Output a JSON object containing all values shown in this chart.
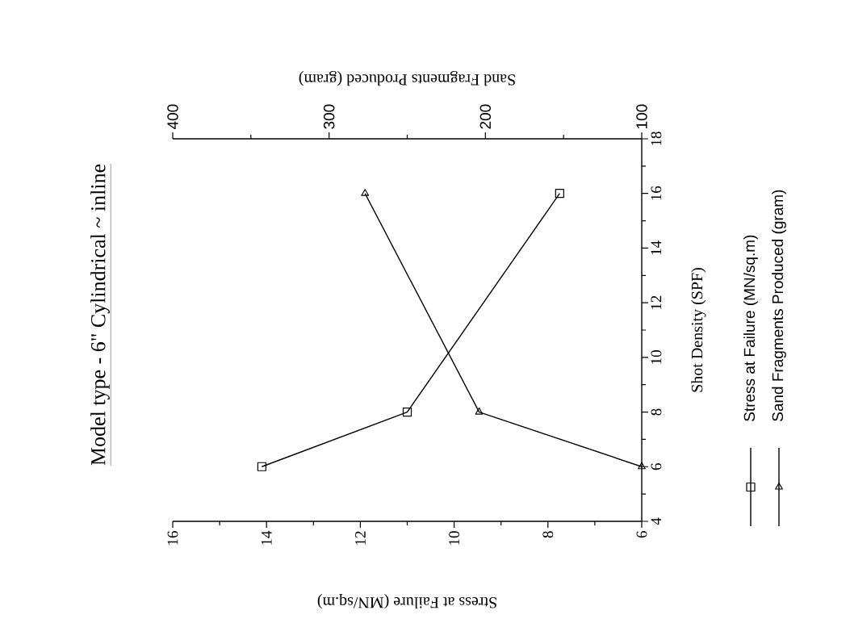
{
  "chart_data": {
    "type": "line",
    "title": "Model type - 6\" Cylindrical ~ inline",
    "ylabel": "Shot Density (SPF)",
    "xlabel": "Stress at Failure (MN/sq.m)",
    "x2label": "Sand Fragments Produced (gram)",
    "series": [
      {
        "name": "Stress at Failure (MN/sq.m)",
        "color": "#000000",
        "x": [
          14.1,
          11.0,
          7.75
        ],
        "values": [
          6,
          8,
          16
        ],
        "marker": "square"
      },
      {
        "name": "Sand Fragments Produced (gram)",
        "color": "#000000",
        "x": [
          100,
          204,
          277
        ],
        "values": [
          6,
          8,
          16
        ],
        "axis": "x2",
        "marker": "triangle"
      }
    ],
    "ylim": [
      4,
      18
    ],
    "yticks": [
      4,
      6,
      8,
      10,
      12,
      14,
      16,
      18
    ],
    "xlim": [
      16,
      6
    ],
    "xticks": [
      16,
      14,
      12,
      10,
      8,
      6
    ],
    "x2lim": [
      400,
      100
    ],
    "x2ticks": [
      400,
      300,
      200,
      100
    ],
    "legend": "right",
    "line_style": "solid"
  }
}
